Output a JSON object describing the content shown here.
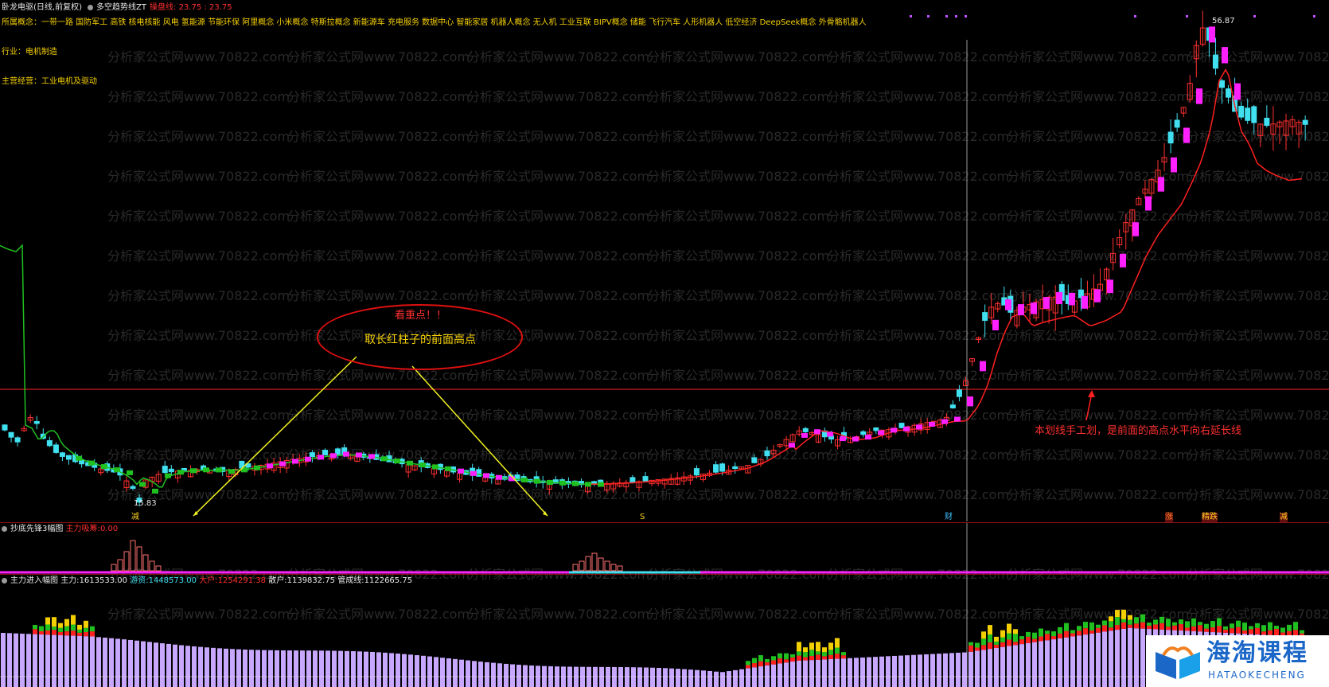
{
  "header": {
    "stock_name": "卧龙电驱(日线,前复权)",
    "indicator_name": "多空趋势线ZT",
    "ma_label": "操盘线:",
    "ma_value1": "23.75",
    "ma_sep": ":",
    "ma_value2": "23.75"
  },
  "info": {
    "concepts": "所属概念：一带一路 国防军工 高铁 核电核能 风电 氢能源 节能环保 阿里概念 小米概念 特斯拉概念 新能源车 充电服务 数据中心 智能家居 机器人概念 无人机 工业互联 BIPV概念 储能 飞行汽车 人形机器人 低空经济 DeepSeek概念 外骨骼机器人",
    "industry": "行业：电机制造",
    "business": "主营经营：工业电机及驱动"
  },
  "annotations": {
    "bubble_line1": "看重点！！",
    "bubble_line2": "取长红柱子的前面高点",
    "right_note": "本划线手工划，是前面的高点水平向右延长线",
    "high_label": "56.87",
    "low_label": "15.83",
    "marker_jian": "减",
    "marker_s": "S",
    "marker_cai": "财",
    "marker_zhang": "涨",
    "marker_jingdie": "精跌",
    "marker_jian2": "减"
  },
  "panel2": {
    "title": "抄底先锋3幅图",
    "label": "主力吸筹:",
    "value": "0.00"
  },
  "panel3": {
    "title": "主力进入幅图",
    "main_label": "主力:",
    "main_value": "1613533.00",
    "hot_label": "游资:",
    "hot_value": "1448573.00",
    "big_label": "大户:",
    "big_value": "1254291.38",
    "retail_label": "散户:",
    "retail_value": "1139832.75",
    "control_label": "管成线:",
    "control_value": "1122665.75"
  },
  "watermark": "分析家公式网www.70822.com",
  "logo": {
    "cn": "海淘课程",
    "en": "HATAOKECHENG"
  },
  "colors": {
    "up": "#ff3030",
    "down": "#40e0f0",
    "ma_green": "#20c020",
    "ma_magenta": "#ff20ff",
    "resistance": "#ff2020",
    "volume": "#c8a8ff"
  }
}
